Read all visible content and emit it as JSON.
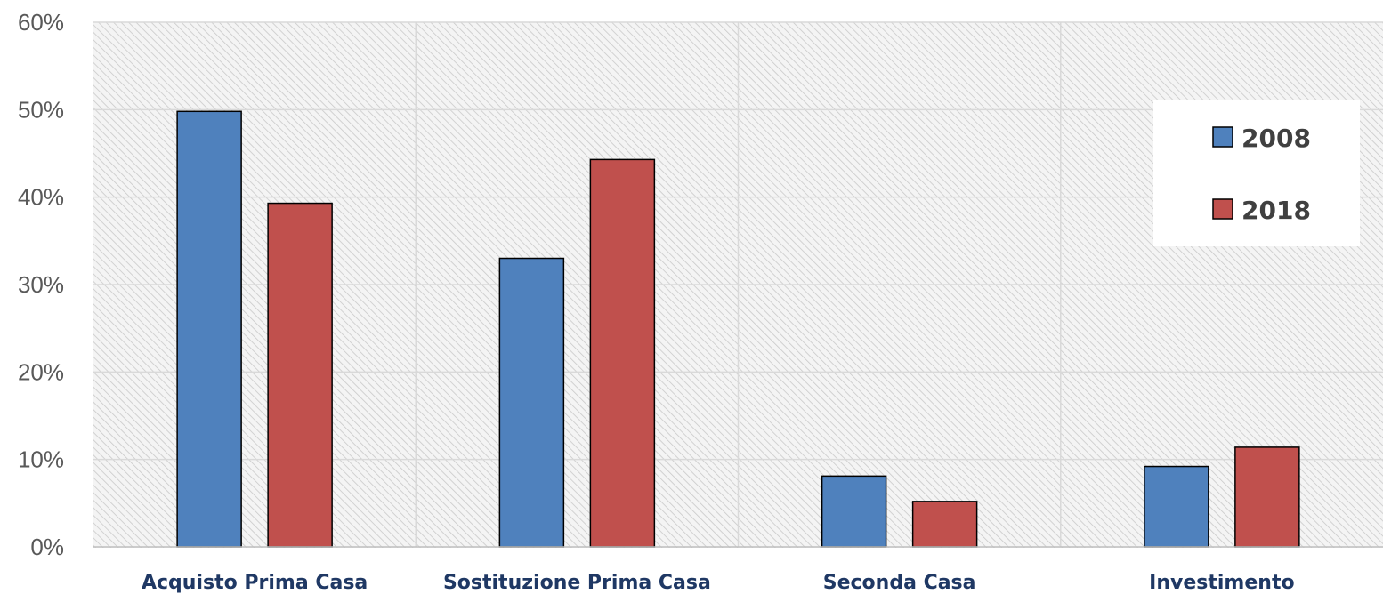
{
  "chart_data": {
    "type": "bar",
    "categories": [
      "Acquisto Prima Casa",
      "Sostituzione Prima Casa",
      "Seconda Casa",
      "Investimento"
    ],
    "series": [
      {
        "name": "2008",
        "values": [
          49.8,
          33.0,
          8.1,
          9.2
        ],
        "color": "#4f81bd"
      },
      {
        "name": "2018",
        "values": [
          39.3,
          44.3,
          5.2,
          11.4
        ],
        "color": "#c0504d"
      }
    ],
    "y_ticks": [
      "0%",
      "10%",
      "20%",
      "30%",
      "40%",
      "50%",
      "60%"
    ],
    "ylim": [
      0,
      60
    ],
    "grid": true,
    "legend_position": "top-right",
    "plot_background": "hatched light gray"
  }
}
